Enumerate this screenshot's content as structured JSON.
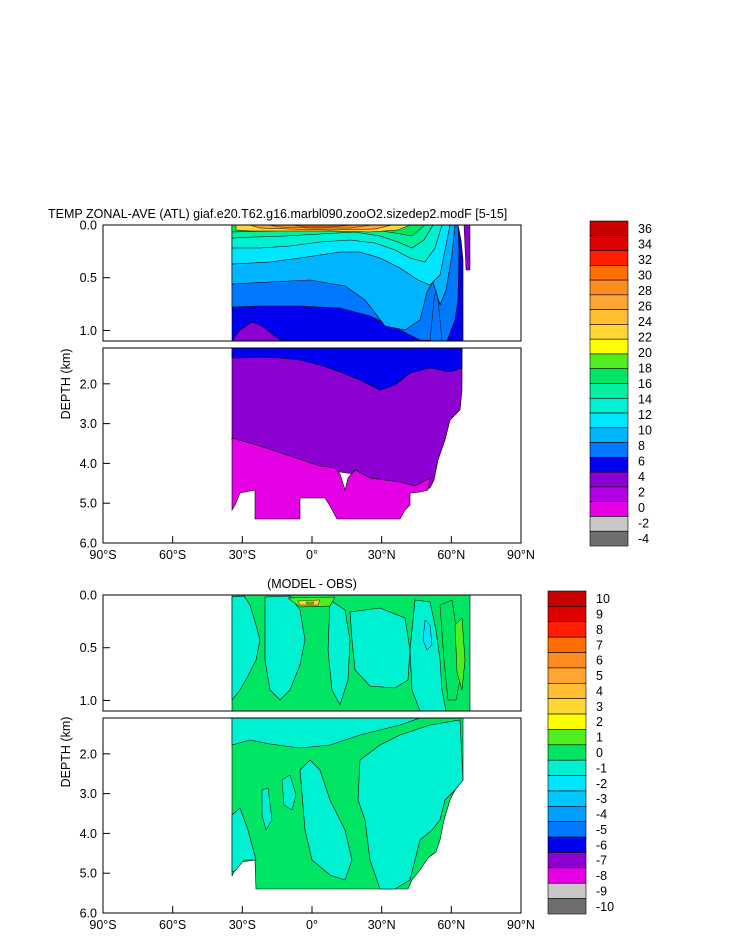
{
  "chart_data": [
    {
      "type": "heatmap",
      "title": "TEMP ZONAL-AVE (ATL) giaf.e20.T62.g16.marbl090.zooO2.sizedep2.modF [5-15]",
      "ylabel": "DEPTH (km)",
      "x_ticks": [
        "90°S",
        "60°S",
        "30°S",
        "0°",
        "30°N",
        "60°N",
        "90°N"
      ],
      "x_tick_values": [
        -90,
        -60,
        -30,
        0,
        30,
        60,
        90
      ],
      "xlim": [
        -90,
        90
      ],
      "y_ticks_upper": [
        "0.0",
        "0.5",
        "1.0"
      ],
      "y_ticks_lower": [
        "2.0",
        "3.0",
        "4.0",
        "5.0",
        "6.0"
      ],
      "ylim_upper_km": [
        0,
        1.1
      ],
      "ylim_lower_km": [
        1.1,
        6.0
      ],
      "colorbar_labels": [
        "36",
        "34",
        "32",
        "30",
        "28",
        "26",
        "24",
        "22",
        "20",
        "18",
        "16",
        "14",
        "12",
        "10",
        "8",
        "6",
        "4",
        "2",
        "0",
        "-2",
        "-4"
      ],
      "colorbar_colors": [
        "#c80000",
        "#e00000",
        "#ff1e00",
        "#ff6e00",
        "#ff8c1e",
        "#ffa534",
        "#ffbe32",
        "#ffd732",
        "#ffff00",
        "#50ee1e",
        "#00e664",
        "#00f0a0",
        "#00f0d2",
        "#00e6ff",
        "#00b4ff",
        "#0078ff",
        "#0000f0",
        "#8c00d2",
        "#b400e6",
        "#e600e6",
        "#c8c8c8",
        "#6e6e6e"
      ]
    },
    {
      "type": "heatmap",
      "title": "(MODEL - OBS)",
      "ylabel": "DEPTH (km)",
      "x_ticks": [
        "90°S",
        "60°S",
        "30°S",
        "0°",
        "30°N",
        "60°N",
        "90°N"
      ],
      "x_tick_values": [
        -90,
        -60,
        -30,
        0,
        30,
        60,
        90
      ],
      "xlim": [
        -90,
        90
      ],
      "y_ticks_upper": [
        "0.0",
        "0.5",
        "1.0"
      ],
      "y_ticks_lower": [
        "2.0",
        "3.0",
        "4.0",
        "5.0",
        "6.0"
      ],
      "ylim_upper_km": [
        0,
        1.1
      ],
      "ylim_lower_km": [
        1.1,
        6.0
      ],
      "colorbar_labels": [
        "10",
        "9",
        "8",
        "7",
        "6",
        "5",
        "4",
        "3",
        "2",
        "1",
        "0",
        "-1",
        "-2",
        "-3",
        "-4",
        "-5",
        "-6",
        "-7",
        "-8",
        "-9",
        "-10"
      ],
      "colorbar_colors": [
        "#c80000",
        "#e00000",
        "#ff1e00",
        "#ff6e00",
        "#ff8c1e",
        "#ffa534",
        "#ffbe32",
        "#ffd732",
        "#ffff00",
        "#50ee1e",
        "#00e664",
        "#00f0d2",
        "#00e6ff",
        "#00c8ff",
        "#00a0ff",
        "#0078ff",
        "#0000f0",
        "#8c00d2",
        "#e600e6",
        "#c8c8c8",
        "#6e6e6e"
      ]
    }
  ]
}
